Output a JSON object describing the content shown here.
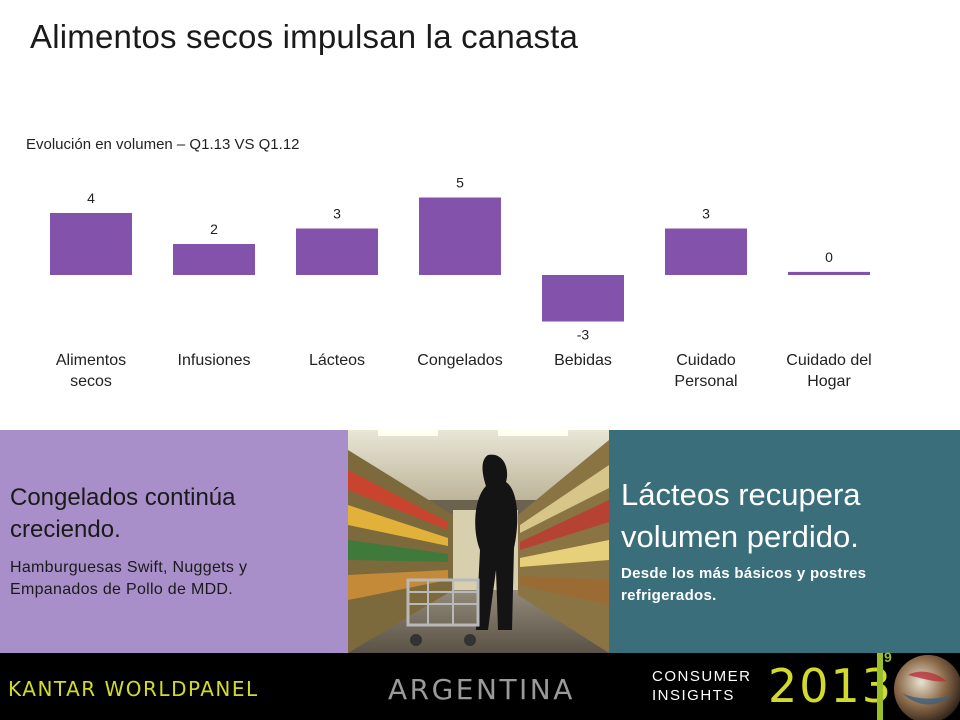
{
  "slide": {
    "title": "Alimentos secos impulsan la canasta",
    "subtitle": "Evolución en volumen – Q1.13 VS Q1.12"
  },
  "chart_data": {
    "type": "bar",
    "title": "",
    "xlabel": "",
    "ylabel": "",
    "categories": [
      "Alimentos secos",
      "Infusiones",
      "Lácteos",
      "Congelados",
      "Bebidas",
      "Cuidado Personal",
      "Cuidado del Hogar"
    ],
    "category_lines": [
      [
        "Alimentos",
        "secos"
      ],
      [
        "Infusiones"
      ],
      [
        "Lácteos"
      ],
      [
        "Congelados"
      ],
      [
        "Bebidas"
      ],
      [
        "Cuidado",
        "Personal"
      ],
      [
        "Cuidado del",
        "Hogar"
      ]
    ],
    "values": [
      4,
      2,
      3,
      5,
      -3,
      3,
      0.2
    ],
    "labels": [
      "4",
      "2",
      "3",
      "5",
      "-3",
      "3",
      "0"
    ],
    "ylim": [
      -3.5,
      5.5
    ],
    "bar_color": "#8352aa",
    "grid": false,
    "legend": "none"
  },
  "panel_left": {
    "heading": "Congelados continúa creciendo.",
    "body": "Hamburguesas Swift, Nuggets y Empanados de Pollo de MDD.",
    "color": "#a98fc9"
  },
  "photo": {
    "icon": "supermarket-shopper-photo"
  },
  "panel_right": {
    "heading": "Lácteos recupera volumen perdido.",
    "body": "Desde los más básicos y postres refrigerados.",
    "color": "#3a6e7b"
  },
  "footer": {
    "brand_a": "KANTAR ",
    "brand_b": "WORLDPANEL",
    "country": "ARGENTINA",
    "consumer_line1": "CONSUMER",
    "consumer_line2": "INSIGHTS",
    "year": "2013",
    "page_number": "9",
    "accent_color": "#d2db2b"
  }
}
